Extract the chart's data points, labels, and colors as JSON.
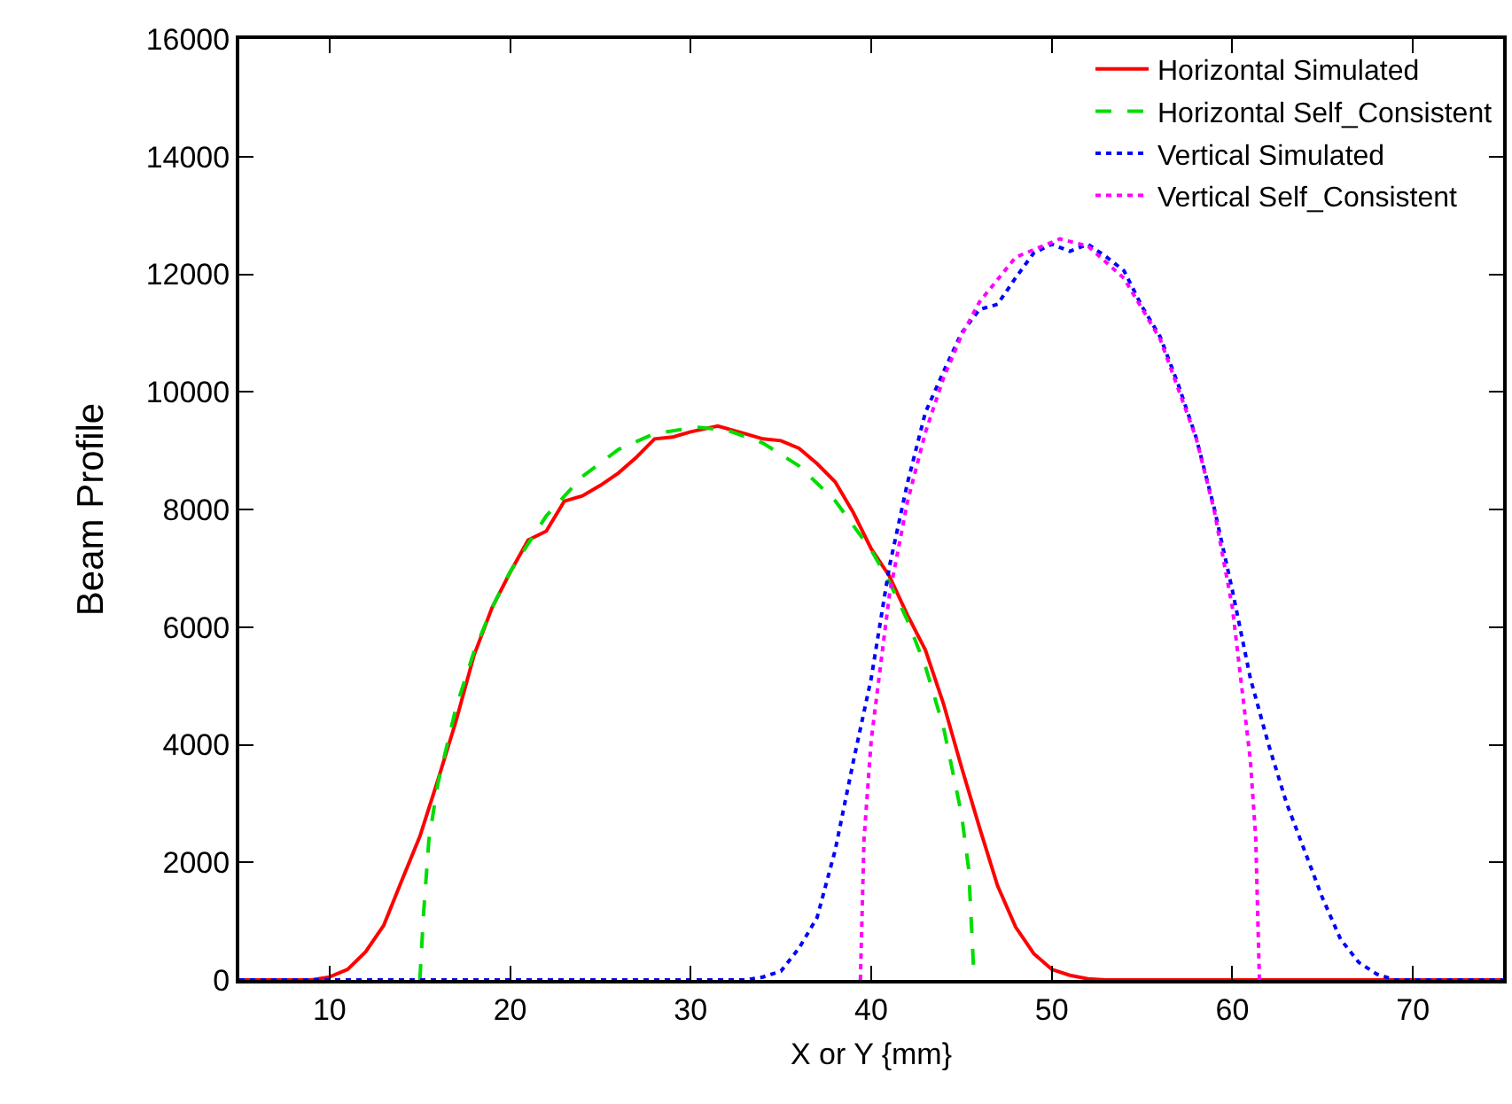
{
  "chart_data": {
    "type": "line",
    "xlabel": "X or Y {mm}",
    "ylabel": "Beam Profile",
    "xlim": [
      5,
      75
    ],
    "ylim": [
      0,
      16000
    ],
    "xticks": [
      10,
      20,
      30,
      40,
      50,
      60,
      70
    ],
    "yticks": [
      0,
      2000,
      4000,
      6000,
      8000,
      10000,
      12000,
      14000,
      16000
    ],
    "grid": false,
    "legend": "top right",
    "marker": "none",
    "series": [
      {
        "name": "Horizontal Simulated",
        "color": "#ff0000",
        "line_style": "solid",
        "x": [
          5,
          7,
          9,
          10,
          11,
          12,
          13,
          14,
          15,
          16,
          17,
          18,
          19,
          20,
          21,
          22,
          23,
          24,
          25,
          26,
          27,
          28,
          29,
          30,
          31.5,
          33,
          34,
          35,
          36,
          37,
          38,
          39,
          40,
          41,
          42,
          43,
          44,
          45,
          46,
          47,
          48,
          49,
          50,
          51,
          52,
          53,
          75
        ],
        "values": [
          0,
          0,
          0,
          50,
          180,
          480,
          930,
          1690,
          2440,
          3400,
          4400,
          5520,
          6330,
          6930,
          7480,
          7630,
          8140,
          8230,
          8410,
          8620,
          8890,
          9200,
          9230,
          9320,
          9420,
          9290,
          9200,
          9170,
          9040,
          8780,
          8470,
          7950,
          7330,
          6870,
          6210,
          5610,
          4700,
          3620,
          2590,
          1600,
          900,
          450,
          180,
          80,
          20,
          0,
          0
        ]
      },
      {
        "name": "Horizontal Self_Consistent",
        "color": "#00dd00",
        "line_style": "dashed",
        "x": [
          15,
          15.2,
          15.5,
          16,
          17,
          18,
          19,
          20,
          22,
          24,
          26,
          28,
          30.35,
          32,
          34,
          36,
          38,
          40,
          41,
          42,
          43,
          44,
          45,
          45.4,
          45.7
        ],
        "values": [
          0,
          1100,
          2380,
          3340,
          4630,
          5580,
          6330,
          6940,
          7890,
          8560,
          9020,
          9290,
          9400,
          9350,
          9130,
          8740,
          8150,
          7310,
          6770,
          6120,
          5330,
          4300,
          2820,
          1880,
          0
        ]
      },
      {
        "name": "Vertical Simulated",
        "color": "#0000ff",
        "line_style": "dotted",
        "x": [
          5,
          33,
          34,
          35,
          36,
          37,
          38,
          39,
          40,
          41,
          42,
          43,
          44,
          45,
          46,
          47,
          48,
          49,
          50,
          51,
          52,
          53,
          54,
          55,
          56,
          57,
          58,
          59,
          60,
          61,
          62,
          63,
          64,
          65,
          66,
          67,
          68,
          69,
          75
        ],
        "values": [
          0,
          0,
          50,
          150,
          540,
          1060,
          2200,
          3700,
          5130,
          7020,
          8440,
          9650,
          10340,
          11000,
          11400,
          11490,
          11940,
          12360,
          12510,
          12390,
          12510,
          12300,
          12060,
          11450,
          10940,
          10130,
          9220,
          8020,
          6630,
          5130,
          4010,
          3010,
          2200,
          1390,
          690,
          300,
          100,
          0,
          0
        ]
      },
      {
        "name": "Vertical Self_Consistent",
        "color": "#ff00ff",
        "line_style": "dotted",
        "x": [
          39.4,
          39.6,
          40,
          41,
          42,
          43,
          44,
          45,
          46,
          48,
          50.45,
          52,
          54,
          56,
          58,
          59,
          60,
          61,
          61.3,
          61.5
        ],
        "values": [
          0,
          2390,
          4080,
          6530,
          8120,
          9310,
          10230,
          10960,
          11530,
          12290,
          12600,
          12480,
          11930,
          10900,
          9210,
          7980,
          6340,
          3740,
          2390,
          0
        ]
      }
    ]
  }
}
